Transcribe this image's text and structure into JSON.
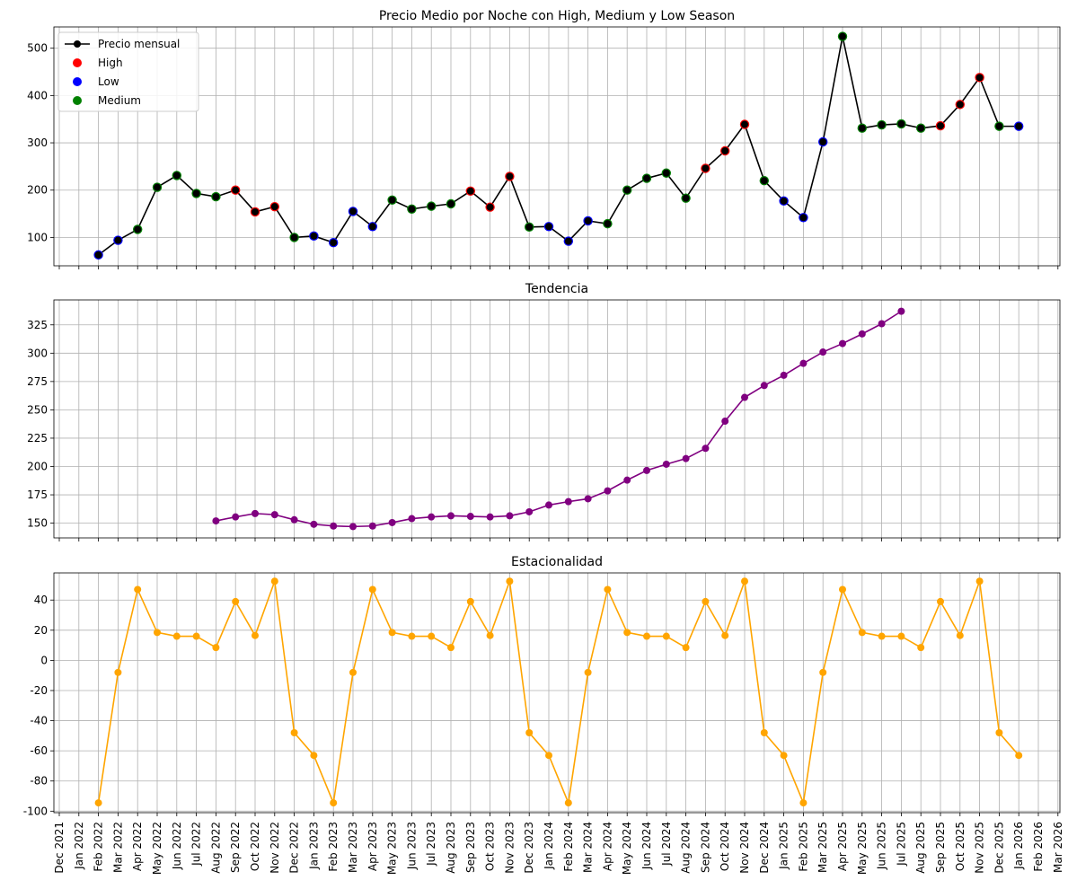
{
  "colors": {
    "monthly_line": "#000000",
    "High": "#ff0000",
    "Low": "#0000ff",
    "Medium": "#008000",
    "trend": "#800080",
    "seasonal": "#ffa500"
  },
  "chart_data": [
    {
      "type": "line",
      "title": "Precio Medio por Noche con High, Medium y Low Season",
      "x_dates": [
        "Feb 2022",
        "Mar 2022",
        "Apr 2022",
        "May 2022",
        "Jun 2022",
        "Jul 2022",
        "Aug 2022",
        "Sep 2022",
        "Oct 2022",
        "Nov 2022",
        "Dec 2022",
        "Jan 2023",
        "Feb 2023",
        "Mar 2023",
        "Apr 2023",
        "May 2023",
        "Jun 2023",
        "Jul 2023",
        "Aug 2023",
        "Sep 2023",
        "Oct 2023",
        "Nov 2023",
        "Dec 2023",
        "Jan 2024",
        "Feb 2024",
        "Mar 2024",
        "Apr 2024",
        "May 2024",
        "Jun 2024",
        "Jul 2024",
        "Aug 2024",
        "Sep 2024",
        "Oct 2024",
        "Nov 2024",
        "Dec 2024",
        "Jan 2025",
        "Feb 2025",
        "Mar 2025",
        "Apr 2025",
        "May 2025",
        "Jun 2025",
        "Jul 2025",
        "Aug 2025",
        "Sep 2025",
        "Oct 2025",
        "Nov 2025",
        "Dec 2025",
        "Jan 2026"
      ],
      "series": [
        {
          "name": "Precio mensual",
          "values": [
            63,
            94,
            117,
            206,
            231,
            193,
            186,
            200,
            154,
            165,
            100,
            103,
            89,
            155,
            123,
            179,
            160,
            166,
            171,
            198,
            164,
            229,
            122,
            123,
            92,
            135,
            129,
            200,
            225,
            236,
            183,
            246,
            283,
            339,
            220,
            177,
            142,
            302,
            525,
            331,
            338,
            340,
            331,
            336,
            381,
            438,
            335,
            335
          ]
        }
      ],
      "season": [
        "Low",
        "Low",
        "Medium",
        "Medium",
        "Medium",
        "Medium",
        "Medium",
        "High",
        "High",
        "High",
        "Medium",
        "Low",
        "Low",
        "Low",
        "Low",
        "Medium",
        "Medium",
        "Medium",
        "Medium",
        "High",
        "High",
        "High",
        "Medium",
        "Low",
        "Low",
        "Low",
        "Medium",
        "Medium",
        "Medium",
        "Medium",
        "Medium",
        "High",
        "High",
        "High",
        "Medium",
        "Low",
        "Low",
        "Low",
        "Medium",
        "Medium",
        "Medium",
        "Medium",
        "Medium",
        "High",
        "High",
        "High",
        "Medium",
        "Low"
      ],
      "legend": [
        "Precio mensual",
        "High",
        "Low",
        "Medium"
      ],
      "legend_position": "top-left",
      "ylim": [
        40,
        545
      ],
      "yticks": [
        100,
        200,
        300,
        400,
        500
      ],
      "grid": true
    },
    {
      "type": "line",
      "title": "Tendencia",
      "x_dates": [
        "Aug 2022",
        "Sep 2022",
        "Oct 2022",
        "Nov 2022",
        "Dec 2022",
        "Jan 2023",
        "Feb 2023",
        "Mar 2023",
        "Apr 2023",
        "May 2023",
        "Jun 2023",
        "Jul 2023",
        "Aug 2023",
        "Sep 2023",
        "Oct 2023",
        "Nov 2023",
        "Dec 2023",
        "Jan 2024",
        "Feb 2024",
        "Mar 2024",
        "Apr 2024",
        "May 2024",
        "Jun 2024",
        "Jul 2024",
        "Aug 2024",
        "Sep 2024",
        "Oct 2024",
        "Nov 2024",
        "Dec 2024",
        "Jan 2025",
        "Feb 2025",
        "Mar 2025",
        "Apr 2025",
        "May 2025",
        "Jun 2025",
        "Jul 2025"
      ],
      "series": [
        {
          "values": [
            152,
            155.5,
            158.5,
            157.5,
            153,
            149,
            147.5,
            147,
            147.5,
            150.5,
            154,
            155.5,
            156.5,
            156,
            155.5,
            156.5,
            160,
            166,
            169,
            171.5,
            178.5,
            188,
            196.5,
            202,
            207,
            216,
            240,
            261,
            271.5,
            280.5,
            291,
            301,
            308.5,
            317,
            326,
            337
          ]
        }
      ],
      "ylim": [
        137,
        347
      ],
      "yticks": [
        150,
        175,
        200,
        225,
        250,
        275,
        300,
        325
      ],
      "grid": true
    },
    {
      "type": "line",
      "title": "Estacionalidad",
      "x_dates": [
        "Feb 2022",
        "Mar 2022",
        "Apr 2022",
        "May 2022",
        "Jun 2022",
        "Jul 2022",
        "Aug 2022",
        "Sep 2022",
        "Oct 2022",
        "Nov 2022",
        "Dec 2022",
        "Jan 2023",
        "Feb 2023",
        "Mar 2023",
        "Apr 2023",
        "May 2023",
        "Jun 2023",
        "Jul 2023",
        "Aug 2023",
        "Sep 2023",
        "Oct 2023",
        "Nov 2023",
        "Dec 2023",
        "Jan 2024",
        "Feb 2024",
        "Mar 2024",
        "Apr 2024",
        "May 2024",
        "Jun 2024",
        "Jul 2024",
        "Aug 2024",
        "Sep 2024",
        "Oct 2024",
        "Nov 2024",
        "Dec 2024",
        "Jan 2025",
        "Feb 2025",
        "Mar 2025",
        "Apr 2025",
        "May 2025",
        "Jun 2025",
        "Jul 2025",
        "Aug 2025",
        "Sep 2025",
        "Oct 2025",
        "Nov 2025",
        "Dec 2025",
        "Jan 2026"
      ],
      "series": [
        {
          "values": [
            -94.5,
            -8,
            47,
            18.5,
            16,
            16,
            8.5,
            39,
            16.5,
            52.5,
            -48,
            -63,
            -94.5,
            -8,
            47,
            18.5,
            16,
            16,
            8.5,
            39,
            16.5,
            52.5,
            -48,
            -63,
            -94.5,
            -8,
            47,
            18.5,
            16,
            16,
            8.5,
            39,
            16.5,
            52.5,
            -48,
            -63,
            -94.5,
            -8,
            47,
            18.5,
            16,
            16,
            8.5,
            39,
            16.5,
            52.5,
            -48,
            -63
          ]
        }
      ],
      "ylim": [
        -101,
        58
      ],
      "yticks": [
        -100,
        -80,
        -60,
        -40,
        -20,
        0,
        20,
        40
      ],
      "grid": true
    }
  ],
  "x_axis": {
    "ticks": [
      "Dec 2021",
      "Jan 2022",
      "Feb 2022",
      "Mar 2022",
      "Apr 2022",
      "May 2022",
      "Jun 2022",
      "Jul 2022",
      "Aug 2022",
      "Sep 2022",
      "Oct 2022",
      "Nov 2022",
      "Dec 2022",
      "Jan 2023",
      "Feb 2023",
      "Mar 2023",
      "Apr 2023",
      "May 2023",
      "Jun 2023",
      "Jul 2023",
      "Aug 2023",
      "Sep 2023",
      "Oct 2023",
      "Nov 2023",
      "Dec 2023",
      "Jan 2024",
      "Feb 2024",
      "Mar 2024",
      "Apr 2024",
      "May 2024",
      "Jun 2024",
      "Jul 2024",
      "Aug 2024",
      "Sep 2024",
      "Oct 2024",
      "Nov 2024",
      "Dec 2024",
      "Jan 2025",
      "Feb 2025",
      "Mar 2025",
      "Apr 2025",
      "May 2025",
      "Jun 2025",
      "Jul 2025",
      "Aug 2025",
      "Sep 2025",
      "Oct 2025",
      "Nov 2025",
      "Dec 2025",
      "Jan 2026",
      "Feb 2026",
      "Mar 2026"
    ],
    "shared": true
  }
}
